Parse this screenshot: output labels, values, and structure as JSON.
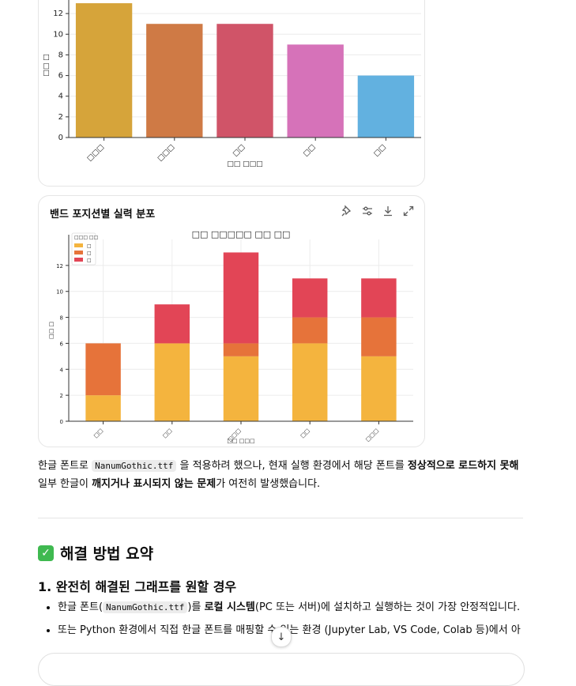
{
  "chart_data": [
    {
      "type": "bar",
      "title": "",
      "categories": [
        "□□□",
        "□□□",
        "□□",
        "□□",
        "□□"
      ],
      "values": [
        13,
        11,
        11,
        9,
        6
      ],
      "colors": [
        "#d6a43a",
        "#cf7a45",
        "#d05468",
        "#d672b9",
        "#62b1e0"
      ],
      "ylabel": "□□ □",
      "xlabel": "□□ □□□",
      "yticks": [
        "0",
        "2",
        "4",
        "6",
        "8",
        "10",
        "12"
      ],
      "ylim": [
        0,
        14
      ],
      "grid": true
    },
    {
      "type": "bar",
      "stacked": true,
      "title": "□□ □□□□□ □□ □□",
      "categories": [
        "□□",
        "□□",
        "□□□",
        "□□",
        "□□□"
      ],
      "series": [
        {
          "name": "□",
          "color": "#f4b43e",
          "values": [
            2,
            6,
            5,
            6,
            5
          ]
        },
        {
          "name": "□",
          "color": "#e6733a",
          "values": [
            4,
            0,
            1,
            2,
            3
          ]
        },
        {
          "name": "□",
          "color": "#e24556",
          "values": [
            0,
            3,
            7,
            3,
            3
          ]
        }
      ],
      "legend_title": "□□□ □□",
      "legend_position": "top-left",
      "ylabel": "□□ □",
      "xlabel": "□□ □□□",
      "yticks": [
        "0",
        "2",
        "4",
        "6",
        "8",
        "10",
        "12"
      ],
      "ylim": [
        0,
        14
      ],
      "grid": true
    }
  ],
  "card2": {
    "title": "밴드 포지션별 실력 분포"
  },
  "toolbar_icons": [
    "pin-icon",
    "sliders-icon",
    "download-icon",
    "expand-icon"
  ],
  "paragraph": {
    "t1": "한글 폰트로 ",
    "code": "NanumGothic.ttf",
    "t2": " 을 적용하려 했으나, 현재 실행 환경에서 해당 폰트를 ",
    "b1": "정상적으로 로드하지 못해",
    "t3": " 일부 한글이 ",
    "b2": "깨지거나 표시되지 않는 문제",
    "t4": "가 여전히 발생했습니다."
  },
  "section": {
    "check": "✓",
    "title": "해결 방법 요약"
  },
  "subsection": {
    "title": "1. 완전히 해결된 그래프를 원할 경우"
  },
  "bullets": {
    "b1_t1": "한글 폰트(",
    "b1_code": "NanumGothic.ttf",
    "b1_t2": ")를 ",
    "b1_bold": "로컬 시스템",
    "b1_t3": "(PC 또는 서버)에 설치하고 실행하는 것이 가장 안정적입니다.",
    "b2": "또는 Python 환경에서 직접 한글 폰트를 매핑할 수 있는 환경 (Jupyter Lab, VS Code, Colab 등)에서 아"
  },
  "scroll_button": {
    "label": "↓"
  }
}
